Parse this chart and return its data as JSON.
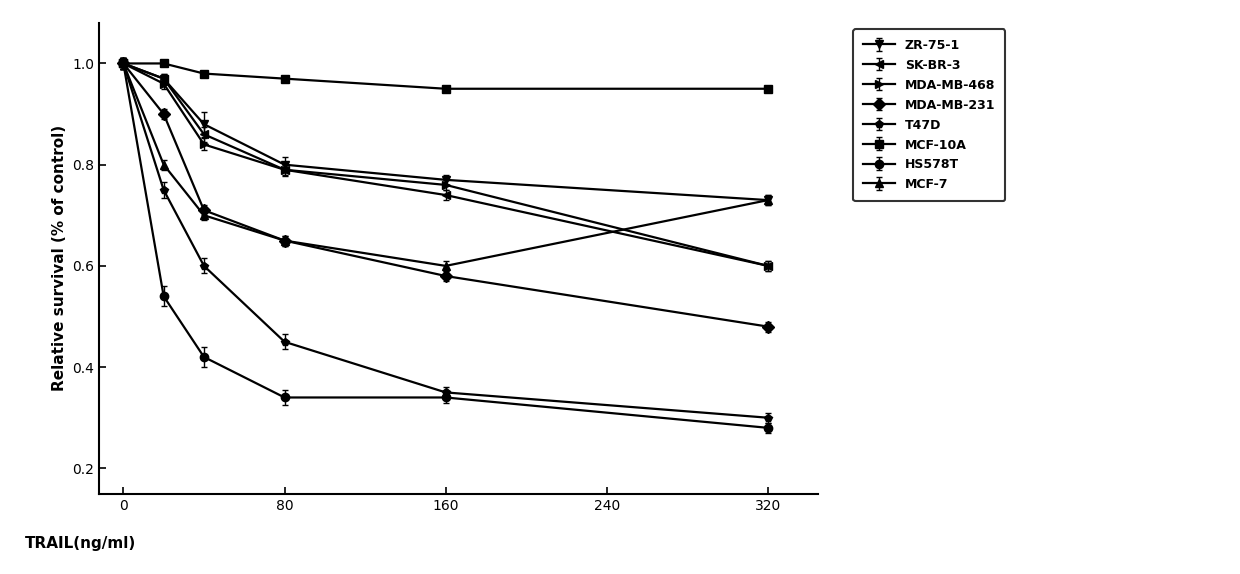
{
  "x": [
    0,
    20,
    40,
    80,
    160,
    320
  ],
  "series_order": [
    "ZR-75-1",
    "SK-BR-3",
    "MDA-MB-468",
    "MDA-MB-231",
    "T47D",
    "MCF-10A",
    "HS578T",
    "MCF-7"
  ],
  "series": {
    "ZR-75-1": {
      "y": [
        1.0,
        0.97,
        0.88,
        0.8,
        0.77,
        0.73
      ],
      "marker": "v",
      "yerr": [
        0.01,
        0.01,
        0.025,
        0.015,
        0.01,
        0.01
      ]
    },
    "SK-BR-3": {
      "y": [
        1.0,
        0.97,
        0.86,
        0.79,
        0.74,
        0.6
      ],
      "marker": "<",
      "yerr": [
        0.01,
        0.01,
        0.015,
        0.012,
        0.01,
        0.01
      ]
    },
    "MDA-MB-468": {
      "y": [
        1.0,
        0.96,
        0.84,
        0.79,
        0.76,
        0.6
      ],
      "marker": ">",
      "yerr": [
        0.01,
        0.01,
        0.012,
        0.01,
        0.01,
        0.01
      ]
    },
    "MDA-MB-231": {
      "y": [
        1.0,
        0.9,
        0.71,
        0.65,
        0.58,
        0.48
      ],
      "marker": "D",
      "yerr": [
        0.01,
        0.01,
        0.01,
        0.01,
        0.01,
        0.01
      ]
    },
    "T47D": {
      "y": [
        1.0,
        0.75,
        0.6,
        0.45,
        0.35,
        0.3
      ],
      "marker": "p",
      "yerr": [
        0.01,
        0.015,
        0.015,
        0.015,
        0.01,
        0.01
      ]
    },
    "MCF-10A": {
      "y": [
        1.0,
        1.0,
        0.98,
        0.97,
        0.95,
        0.95
      ],
      "marker": "s",
      "yerr": [
        0.005,
        0.005,
        0.005,
        0.005,
        0.005,
        0.005
      ]
    },
    "HS578T": {
      "y": [
        1.0,
        0.54,
        0.42,
        0.34,
        0.34,
        0.28
      ],
      "marker": "o",
      "yerr": [
        0.01,
        0.02,
        0.02,
        0.015,
        0.01,
        0.01
      ]
    },
    "MCF-7": {
      "y": [
        1.0,
        0.8,
        0.7,
        0.65,
        0.6,
        0.73
      ],
      "marker": "^",
      "yerr": [
        0.01,
        0.01,
        0.01,
        0.01,
        0.01,
        0.01
      ]
    }
  },
  "xlabel": "TRAIL(ng/ml)",
  "ylabel": "Relative survival (% of control)",
  "ylim": [
    0.15,
    1.08
  ],
  "yticks": [
    0.2,
    0.4,
    0.6,
    0.8,
    1.0
  ],
  "xticks": [
    0,
    80,
    160,
    240,
    320
  ],
  "xticklabels": [
    "0",
    "80",
    "160",
    "240",
    "320"
  ],
  "yticklabels": [
    "0.2",
    "0.4",
    "0.6",
    "0.8",
    "1.0"
  ],
  "color": "black",
  "linewidth": 1.6,
  "markersize": 6,
  "legend_fontsize": 9,
  "axis_fontsize": 11,
  "tick_fontsize": 10
}
